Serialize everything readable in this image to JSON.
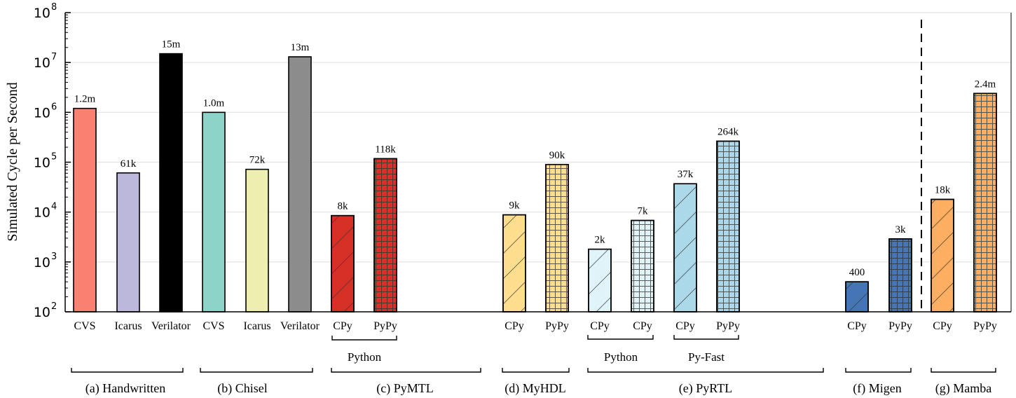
{
  "chart_data": {
    "type": "bar",
    "ylabel": "Simulated Cycle per Second",
    "yscale": "log",
    "ylim": [
      100,
      100000000
    ],
    "yticks": [
      2,
      3,
      4,
      5,
      6,
      7,
      8
    ],
    "grid": "horizontal",
    "bars": [
      {
        "label": "CVS",
        "value": 1200000,
        "value_label": "1.2m",
        "color": "#fa8072",
        "hatch": "none"
      },
      {
        "label": "Icarus",
        "value": 61000,
        "value_label": "61k",
        "color": "#bcb8dc",
        "hatch": "none"
      },
      {
        "label": "Verilator",
        "value": 15000000,
        "value_label": "15m",
        "color": "#000000",
        "hatch": "none"
      },
      {
        "label": "CVS",
        "value": 1000000,
        "value_label": "1.0m",
        "color": "#8dd3c7",
        "hatch": "none"
      },
      {
        "label": "Icarus",
        "value": 72000,
        "value_label": "72k",
        "color": "#eeeeb0",
        "hatch": "none"
      },
      {
        "label": "Verilator",
        "value": 13000000,
        "value_label": "13m",
        "color": "#8c8c8c",
        "hatch": "none"
      },
      {
        "label": "CPy",
        "value": 8500,
        "value_label": "8k",
        "color": "#d73027",
        "hatch": "diag"
      },
      {
        "label": "PyPy",
        "value": 118000,
        "value_label": "118k",
        "color": "#d73027",
        "hatch": "grid"
      },
      {
        "label": "CPy",
        "value": 8800,
        "value_label": "9k",
        "color": "#fdde8e",
        "hatch": "diag"
      },
      {
        "label": "PyPy",
        "value": 90000,
        "value_label": "90k",
        "color": "#fdde8e",
        "hatch": "grid"
      },
      {
        "label": "CPy",
        "value": 1800,
        "value_label": "2k",
        "color": "#e0f3f8",
        "hatch": "diag"
      },
      {
        "label": "CPy",
        "value": 6800,
        "value_label": "7k",
        "color": "#e0f3f8",
        "hatch": "grid"
      },
      {
        "label": "CPy",
        "value": 37000,
        "value_label": "37k",
        "color": "#abd9e9",
        "hatch": "diag"
      },
      {
        "label": "PyPy",
        "value": 264000,
        "value_label": "264k",
        "color": "#abd9e9",
        "hatch": "grid"
      },
      {
        "label": "CPy",
        "value": 400,
        "value_label": "400",
        "color": "#4575b4",
        "hatch": "diag"
      },
      {
        "label": "PyPy",
        "value": 2900,
        "value_label": "3k",
        "color": "#4575b4",
        "hatch": "grid"
      },
      {
        "label": "CPy",
        "value": 18000,
        "value_label": "18k",
        "color": "#fdae61",
        "hatch": "diag"
      },
      {
        "label": "PyPy",
        "value": 2400000,
        "value_label": "2.4m",
        "color": "#fdae61",
        "hatch": "grid"
      }
    ],
    "subgroups": [
      {
        "label": "Python"
      },
      {
        "label": "Python"
      },
      {
        "label": "Py-Fast"
      }
    ],
    "groups": [
      {
        "label": "(a) Handwritten"
      },
      {
        "label": "(b) Chisel"
      },
      {
        "label": "(c) PyMTL"
      },
      {
        "label": "(d) MyHDL"
      },
      {
        "label": "(e) PyRTL"
      },
      {
        "label": "(f) Migen"
      },
      {
        "label": "(g) Mamba"
      }
    ]
  }
}
